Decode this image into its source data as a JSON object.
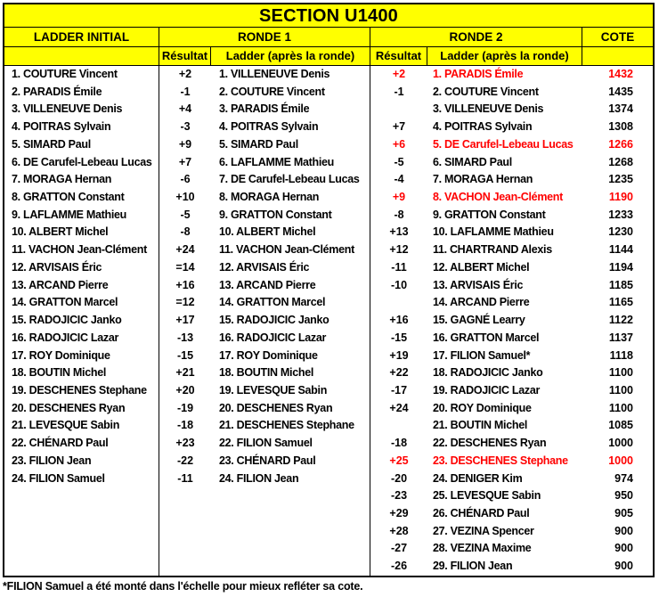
{
  "title": "SECTION U1400",
  "headers": {
    "ladder_initial": "LADDER INITIAL",
    "ronde1": "RONDE 1",
    "ronde2": "RONDE 2",
    "cote": "COTE",
    "resultat": "Résultat",
    "ladder_apres": "Ladder (après la ronde)"
  },
  "ladder_initial": [
    "1. COUTURE Vincent",
    "2. PARADIS Émile",
    "3. VILLENEUVE Denis",
    "4. POITRAS Sylvain",
    "5. SIMARD Paul",
    "6. DE Carufel-Lebeau Lucas",
    "7. MORAGA Hernan",
    "8. GRATTON Constant",
    "9. LAFLAMME Mathieu",
    "10. ALBERT Michel",
    "11. VACHON Jean-Clément",
    "12. ARVISAIS Éric",
    "13. ARCAND Pierre",
    "14. GRATTON Marcel",
    "15. RADOJICIC Janko",
    "16. RADOJICIC Lazar",
    "17. ROY Dominique",
    "18. BOUTIN Michel",
    "19. DESCHENES Stephane",
    "20. DESCHENES Ryan",
    "21. LEVESQUE Sabin",
    "22. CHÉNARD Paul",
    "23. FILION Jean",
    "24. FILION Samuel"
  ],
  "ronde1_rows": [
    {
      "resultat": "+2",
      "name": "1. VILLENEUVE Denis"
    },
    {
      "resultat": "-1",
      "name": "2. COUTURE Vincent"
    },
    {
      "resultat": "+4",
      "name": "3. PARADIS Émile"
    },
    {
      "resultat": "-3",
      "name": "4. POITRAS Sylvain"
    },
    {
      "resultat": "+9",
      "name": "5. SIMARD Paul"
    },
    {
      "resultat": "+7",
      "name": "6. LAFLAMME Mathieu"
    },
    {
      "resultat": "-6",
      "name": "7. DE Carufel-Lebeau Lucas"
    },
    {
      "resultat": "+10",
      "name": "8. MORAGA Hernan"
    },
    {
      "resultat": "-5",
      "name": "9. GRATTON Constant"
    },
    {
      "resultat": "-8",
      "name": "10. ALBERT Michel"
    },
    {
      "resultat": "+24",
      "name": "11. VACHON Jean-Clément"
    },
    {
      "resultat": "=14",
      "name": "12. ARVISAIS Éric"
    },
    {
      "resultat": "+16",
      "name": "13. ARCAND Pierre"
    },
    {
      "resultat": "=12",
      "name": "14. GRATTON Marcel"
    },
    {
      "resultat": "+17",
      "name": "15. RADOJICIC Janko"
    },
    {
      "resultat": "-13",
      "name": "16. RADOJICIC Lazar"
    },
    {
      "resultat": "-15",
      "name": "17. ROY Dominique"
    },
    {
      "resultat": "+21",
      "name": "18. BOUTIN Michel"
    },
    {
      "resultat": "+20",
      "name": "19. LEVESQUE Sabin"
    },
    {
      "resultat": "-19",
      "name": "20. DESCHENES Ryan"
    },
    {
      "resultat": "-18",
      "name": "21. DESCHENES Stephane"
    },
    {
      "resultat": "+23",
      "name": "22. FILION Samuel"
    },
    {
      "resultat": "-22",
      "name": "23. CHÉNARD Paul"
    },
    {
      "resultat": "-11",
      "name": "24. FILION Jean"
    }
  ],
  "ronde2_rows": [
    {
      "resultat": "+2",
      "name": "1. PARADIS Émile",
      "cote": "1432",
      "highlight": true
    },
    {
      "resultat": "-1",
      "name": "2. COUTURE Vincent",
      "cote": "1435",
      "highlight": false
    },
    {
      "resultat": "",
      "name": "3. VILLENEUVE Denis",
      "cote": "1374",
      "highlight": false
    },
    {
      "resultat": "+7",
      "name": "4. POITRAS Sylvain",
      "cote": "1308",
      "highlight": false
    },
    {
      "resultat": "+6",
      "name": "5. DE Carufel-Lebeau Lucas",
      "cote": "1266",
      "highlight": true
    },
    {
      "resultat": "-5",
      "name": "6. SIMARD Paul",
      "cote": "1268",
      "highlight": false
    },
    {
      "resultat": "-4",
      "name": "7. MORAGA Hernan",
      "cote": "1235",
      "highlight": false
    },
    {
      "resultat": "+9",
      "name": "8. VACHON Jean-Clément",
      "cote": "1190",
      "highlight": true
    },
    {
      "resultat": "-8",
      "name": "9. GRATTON Constant",
      "cote": "1233",
      "highlight": false
    },
    {
      "resultat": "+13",
      "name": "10. LAFLAMME Mathieu",
      "cote": "1230",
      "highlight": false
    },
    {
      "resultat": "+12",
      "name": "11. CHARTRAND Alexis",
      "cote": "1144",
      "highlight": false
    },
    {
      "resultat": "-11",
      "name": "12. ALBERT Michel",
      "cote": "1194",
      "highlight": false
    },
    {
      "resultat": "-10",
      "name": "13. ARVISAIS Éric",
      "cote": "1185",
      "highlight": false
    },
    {
      "resultat": "",
      "name": "14. ARCAND Pierre",
      "cote": "1165",
      "highlight": false
    },
    {
      "resultat": "+16",
      "name": "15. GAGNÉ Learry",
      "cote": "1122",
      "highlight": false
    },
    {
      "resultat": "-15",
      "name": "16. GRATTON Marcel",
      "cote": "1137",
      "highlight": false
    },
    {
      "resultat": "+19",
      "name": "17. FILION Samuel*",
      "cote": "1118",
      "highlight": false
    },
    {
      "resultat": "+22",
      "name": "18. RADOJICIC Janko",
      "cote": "1100",
      "highlight": false
    },
    {
      "resultat": "-17",
      "name": "19. RADOJICIC Lazar",
      "cote": "1100",
      "highlight": false
    },
    {
      "resultat": "+24",
      "name": "20. ROY Dominique",
      "cote": "1100",
      "highlight": false
    },
    {
      "resultat": "",
      "name": "21. BOUTIN Michel",
      "cote": "1085",
      "highlight": false
    },
    {
      "resultat": "-18",
      "name": "22. DESCHENES Ryan",
      "cote": "1000",
      "highlight": false
    },
    {
      "resultat": "+25",
      "name": "23. DESCHENES Stephane",
      "cote": "1000",
      "highlight": true
    },
    {
      "resultat": "-20",
      "name": "24. DENIGER Kim",
      "cote": "974",
      "highlight": false
    },
    {
      "resultat": "-23",
      "name": "25. LEVESQUE Sabin",
      "cote": "950",
      "highlight": false
    },
    {
      "resultat": "+29",
      "name": "26. CHÉNARD Paul",
      "cote": "905",
      "highlight": false
    },
    {
      "resultat": "+28",
      "name": "27. VEZINA Spencer",
      "cote": "900",
      "highlight": false
    },
    {
      "resultat": "-27",
      "name": "28. VEZINA Maxime",
      "cote": "900",
      "highlight": false
    },
    {
      "resultat": "-26",
      "name": "29. FILION Jean",
      "cote": "900",
      "highlight": false
    }
  ],
  "footnote": "*FILION Samuel a été monté dans l'échelle pour mieux refléter sa cote.",
  "colors": {
    "header_bg": "#FFFF00",
    "highlight": "#FF0000",
    "border": "#000000",
    "text": "#000000",
    "page_bg": "#FFFFFF"
  }
}
